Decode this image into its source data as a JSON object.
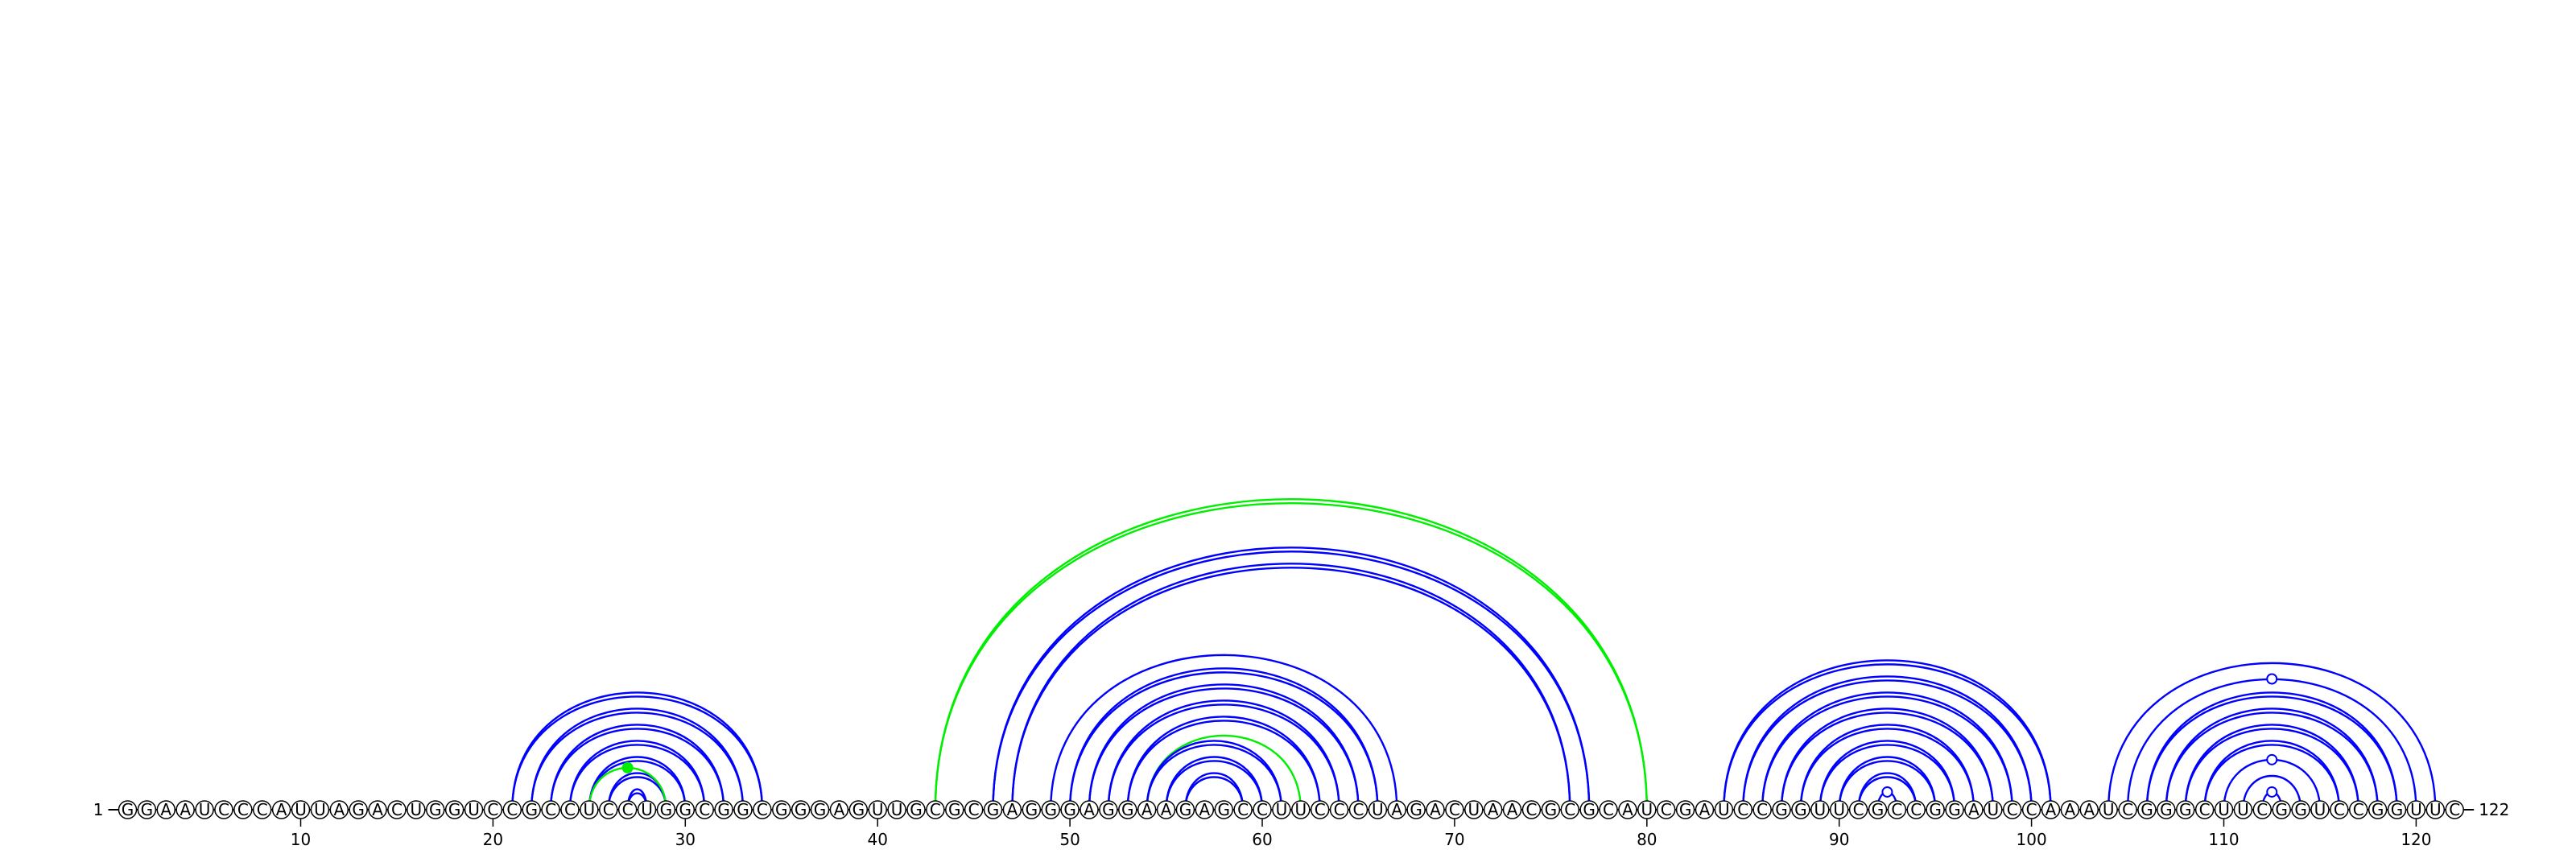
{
  "sequence": "GGAAUCCCAUUAGACUGGUCCGCCUCCUGGCGGCGGGAGUUGCGCGAGGGAGGAAGAGCCUUCCCUAGACUAACGCGCAUCGAUCCGGUUCGCCGGAUCCAAAUCGGGCUUCGGUCCGGUUC",
  "start_label": "1",
  "end_label": "122",
  "tick_labels": [
    "10",
    "20",
    "30",
    "40",
    "50",
    "60",
    "70",
    "80",
    "90",
    "100",
    "110",
    "120"
  ],
  "colors": {
    "pair_double": "#0000ff",
    "pair_single": "#0000ff",
    "pair_alt": "#00ee00"
  },
  "pairs": [
    {
      "i": 21,
      "j": 34,
      "style": "double"
    },
    {
      "i": 22,
      "j": 33,
      "style": "double"
    },
    {
      "i": 23,
      "j": 32,
      "style": "double"
    },
    {
      "i": 24,
      "j": 31,
      "style": "double"
    },
    {
      "i": 25,
      "j": 30,
      "style": "double"
    },
    {
      "i": 26,
      "j": 29,
      "style": "double"
    },
    {
      "i": 27,
      "j": 28,
      "style": "double"
    },
    {
      "i": 25,
      "j": 29,
      "style": "alt_single"
    },
    {
      "i": 43,
      "j": 80,
      "style": "alt_double"
    },
    {
      "i": 46,
      "j": 77,
      "style": "double"
    },
    {
      "i": 47,
      "j": 76,
      "style": "double"
    },
    {
      "i": 49,
      "j": 67,
      "style": "single"
    },
    {
      "i": 50,
      "j": 66,
      "style": "double"
    },
    {
      "i": 51,
      "j": 65,
      "style": "double"
    },
    {
      "i": 52,
      "j": 64,
      "style": "double"
    },
    {
      "i": 53,
      "j": 63,
      "style": "double"
    },
    {
      "i": 54,
      "j": 62,
      "style": "alt_single"
    },
    {
      "i": 54,
      "j": 61,
      "style": "double"
    },
    {
      "i": 55,
      "j": 60,
      "style": "double"
    },
    {
      "i": 56,
      "j": 59,
      "style": "double"
    },
    {
      "i": 84,
      "j": 101,
      "style": "double"
    },
    {
      "i": 85,
      "j": 100,
      "style": "double"
    },
    {
      "i": 86,
      "j": 99,
      "style": "double"
    },
    {
      "i": 87,
      "j": 98,
      "style": "double"
    },
    {
      "i": 88,
      "j": 97,
      "style": "double"
    },
    {
      "i": 89,
      "j": 96,
      "style": "double"
    },
    {
      "i": 90,
      "j": 95,
      "style": "double"
    },
    {
      "i": 91,
      "j": 94,
      "style": "double"
    },
    {
      "i": 92,
      "j": 93,
      "style": "single"
    },
    {
      "i": 104,
      "j": 121,
      "style": "single"
    },
    {
      "i": 105,
      "j": 120,
      "style": "single"
    },
    {
      "i": 106,
      "j": 119,
      "style": "double"
    },
    {
      "i": 107,
      "j": 118,
      "style": "double"
    },
    {
      "i": 108,
      "j": 117,
      "style": "double"
    },
    {
      "i": 109,
      "j": 116,
      "style": "double"
    },
    {
      "i": 110,
      "j": 115,
      "style": "single"
    },
    {
      "i": 111,
      "j": 114,
      "style": "single"
    },
    {
      "i": 112,
      "j": 113,
      "style": "single"
    }
  ],
  "noncanonical_markers": [
    {
      "i": 25,
      "j": 29,
      "filled": true,
      "color": "#00ee00"
    },
    {
      "i": 92,
      "j": 93,
      "filled": false,
      "color": "#0000ff"
    },
    {
      "i": 105,
      "j": 120,
      "filled": false,
      "color": "#0000ff"
    },
    {
      "i": 110,
      "j": 115,
      "filled": false,
      "color": "#0000ff"
    },
    {
      "i": 112,
      "j": 113,
      "filled": false,
      "color": "#0000ff"
    }
  ]
}
